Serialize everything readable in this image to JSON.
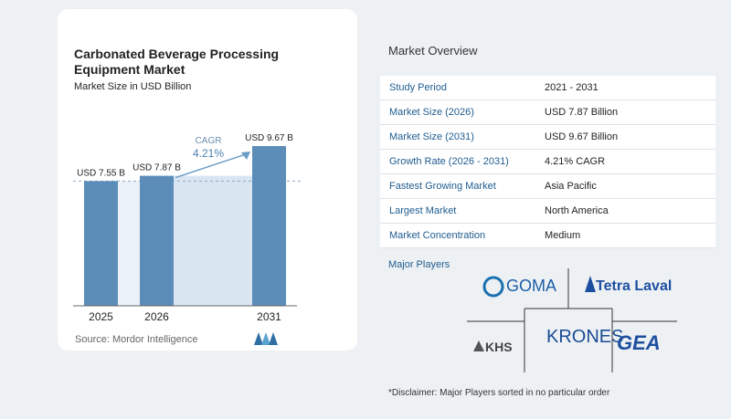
{
  "chart_data": {
    "type": "bar",
    "title": "Carbonated Beverage Processing Equipment Market",
    "subtitle": "Market Size in USD Billion",
    "categories": [
      "2025",
      "2026",
      "2031"
    ],
    "values": [
      7.55,
      7.87,
      9.67
    ],
    "value_labels": [
      "USD 7.55 B",
      "USD 7.87 B",
      "USD 9.67 B"
    ],
    "cagr_label": "CAGR",
    "cagr_value": "4.21%",
    "source": "Source: Mordor Intelligence",
    "colors": {
      "bar": "#5b8db8",
      "band": "#d9e6f2",
      "arrow": "#6a9cc7"
    }
  },
  "overview": {
    "title": "Market Overview",
    "rows": [
      {
        "key": "Study Period",
        "value": "2021 - 2031"
      },
      {
        "key": "Market Size (2026)",
        "value": "USD 7.87 Billion"
      },
      {
        "key": "Market Size (2031)",
        "value": "USD 9.67 Billion"
      },
      {
        "key": "Growth Rate (2026 - 2031)",
        "value": "4.21% CAGR"
      },
      {
        "key": "Fastest Growing Market",
        "value": "Asia Pacific"
      },
      {
        "key": "Largest Market",
        "value": "North America"
      },
      {
        "key": "Market Concentration",
        "value": "Medium"
      }
    ]
  },
  "players": {
    "title": "Major Players",
    "names": [
      "GOMA",
      "Tetra Laval",
      "KHS",
      "KRONES",
      "GEA"
    ]
  },
  "disclaimer": "*Disclaimer: Major Players sorted in no particular order"
}
